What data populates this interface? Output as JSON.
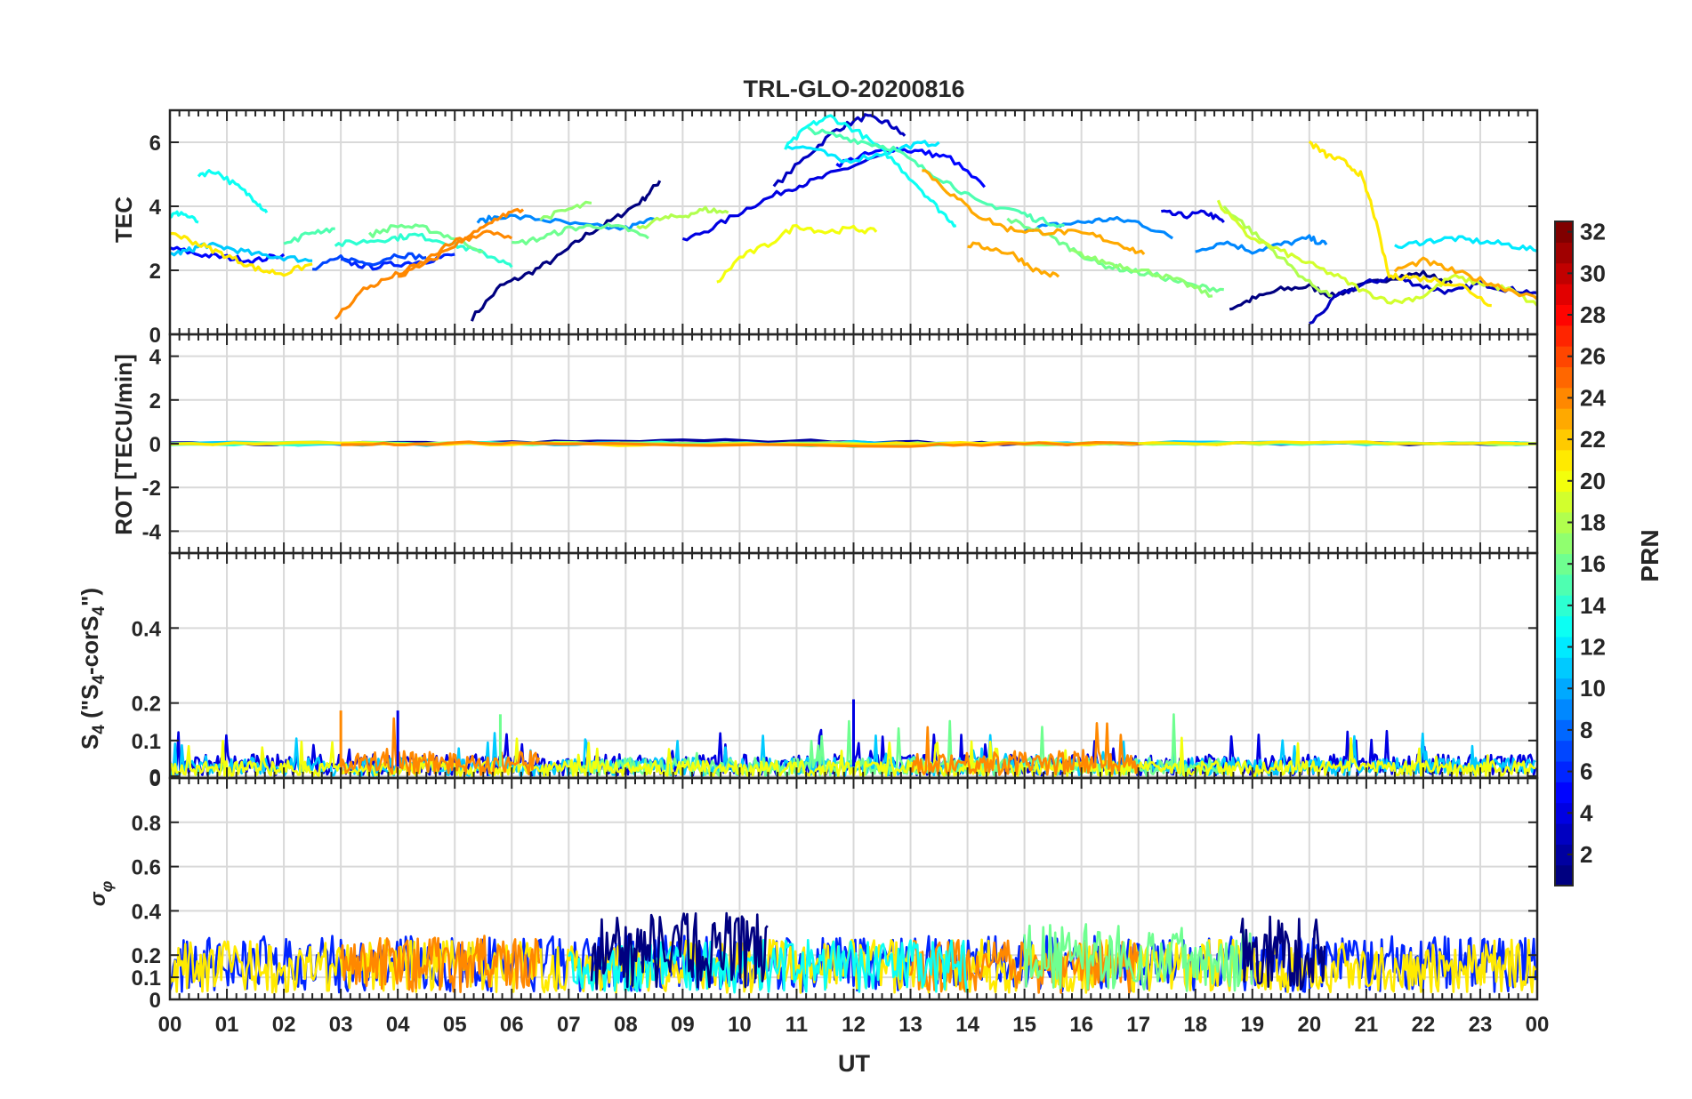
{
  "figure": {
    "title": "TRL-GLO-20200816",
    "xlabel": "UT",
    "x_ticks": [
      "00",
      "01",
      "02",
      "03",
      "04",
      "05",
      "06",
      "07",
      "08",
      "09",
      "10",
      "11",
      "12",
      "13",
      "14",
      "15",
      "16",
      "17",
      "18",
      "19",
      "20",
      "21",
      "22",
      "23",
      "00"
    ],
    "colorbar": {
      "label": "PRN",
      "range": [
        1,
        32
      ],
      "ticks": [
        "2",
        "4",
        "6",
        "8",
        "10",
        "12",
        "14",
        "16",
        "18",
        "20",
        "22",
        "24",
        "26",
        "28",
        "30",
        "32"
      ],
      "colormap": "jet"
    }
  },
  "chart_data": [
    {
      "type": "line",
      "panel": "TEC",
      "ylabel": "TEC",
      "xlim": [
        0,
        24
      ],
      "ylim": [
        0,
        7
      ],
      "yticks": [
        "0",
        "2",
        "4",
        "6"
      ],
      "series": [
        {
          "prn": 1,
          "x": [
            5.3,
            5.8,
            6.3,
            6.8,
            7.3,
            7.8,
            8.3,
            8.6
          ],
          "y": [
            0.5,
            1.5,
            1.9,
            2.4,
            3.1,
            3.6,
            4.2,
            4.8
          ]
        },
        {
          "prn": 1,
          "x": [
            18.6,
            19.0,
            19.5,
            20.0,
            20.4,
            20.9,
            21.5,
            22.0,
            22.5
          ],
          "y": [
            0.8,
            1.1,
            1.4,
            1.5,
            1.2,
            1.5,
            1.8,
            1.9,
            1.6
          ]
        },
        {
          "prn": 3,
          "x": [
            10.6,
            11.2,
            11.7,
            12.2,
            12.6,
            12.9
          ],
          "y": [
            4.6,
            5.6,
            6.4,
            6.8,
            6.6,
            6.2
          ]
        },
        {
          "prn": 3,
          "x": [
            20.0,
            20.5,
            21.0,
            21.5,
            22.0,
            22.5,
            23.0,
            23.5,
            24.0
          ],
          "y": [
            0.3,
            1.2,
            1.6,
            1.8,
            1.5,
            1.3,
            1.6,
            1.4,
            1.3
          ]
        },
        {
          "prn": 4,
          "x": [
            9.0,
            9.6,
            10.2,
            10.8,
            11.3,
            11.9,
            12.5
          ],
          "y": [
            2.9,
            3.4,
            4.0,
            4.5,
            4.8,
            5.2,
            5.6
          ]
        },
        {
          "prn": 4,
          "x": [
            17.4,
            17.8,
            18.2,
            18.5
          ],
          "y": [
            3.8,
            3.7,
            3.8,
            3.5
          ]
        },
        {
          "prn": 5,
          "x": [
            0.0,
            0.5,
            1.0,
            1.5,
            2.0
          ],
          "y": [
            2.7,
            2.5,
            2.4,
            2.3,
            2.5
          ]
        },
        {
          "prn": 5,
          "x": [
            11.7,
            12.2,
            12.7,
            13.2,
            13.7,
            14.3
          ],
          "y": [
            5.3,
            5.6,
            5.8,
            5.7,
            5.5,
            4.6
          ]
        },
        {
          "prn": 6,
          "x": [
            3.0,
            3.5,
            4.0,
            4.5,
            5.0
          ],
          "y": [
            2.3,
            2.1,
            2.2,
            2.3,
            2.5
          ]
        },
        {
          "prn": 7,
          "x": [
            2.5,
            3.0,
            3.5,
            4.0,
            4.5
          ],
          "y": [
            2.0,
            2.4,
            2.2,
            2.5,
            2.4
          ]
        },
        {
          "prn": 9,
          "x": [
            5.4,
            5.8,
            6.5,
            7.2,
            8.0,
            8.5
          ],
          "y": [
            3.5,
            3.7,
            3.6,
            3.4,
            3.3,
            3.6
          ]
        },
        {
          "prn": 9,
          "x": [
            15.0,
            15.5,
            16.0,
            16.5,
            17.0,
            17.6
          ],
          "y": [
            3.3,
            3.4,
            3.5,
            3.6,
            3.5,
            3.0
          ]
        },
        {
          "prn": 9,
          "x": [
            18.0,
            18.5,
            19.0,
            19.5,
            20.0,
            20.3
          ],
          "y": [
            2.6,
            2.9,
            2.6,
            2.8,
            3.0,
            2.8
          ]
        },
        {
          "prn": 11,
          "x": [
            0.0,
            0.3,
            0.6,
            1.0,
            1.5,
            2.0,
            2.5
          ],
          "y": [
            2.5,
            2.6,
            2.8,
            2.7,
            2.5,
            2.4,
            2.3
          ]
        },
        {
          "prn": 12,
          "x": [
            10.8,
            11.3,
            11.8,
            12.4,
            13.0,
            13.5
          ],
          "y": [
            5.9,
            5.8,
            5.4,
            5.6,
            5.9,
            6.0
          ]
        },
        {
          "prn": 12,
          "x": [
            21.5,
            22.0,
            22.5,
            23.0,
            23.5,
            24.0
          ],
          "y": [
            2.7,
            2.9,
            3.0,
            2.9,
            2.8,
            2.6
          ]
        },
        {
          "prn": 13,
          "x": [
            0.5,
            0.8,
            1.2,
            1.5,
            1.7
          ],
          "y": [
            5.0,
            5.1,
            4.6,
            4.2,
            3.8
          ]
        },
        {
          "prn": 13,
          "x": [
            0.0,
            0.2,
            0.5
          ],
          "y": [
            3.7,
            3.8,
            3.5
          ]
        },
        {
          "prn": 13,
          "x": [
            10.8,
            11.2,
            11.6,
            12.1,
            12.6,
            13.1,
            13.5,
            13.8
          ],
          "y": [
            5.8,
            6.5,
            6.8,
            6.3,
            5.6,
            4.7,
            3.9,
            3.4
          ]
        },
        {
          "prn": 14,
          "x": [
            2.9,
            3.4,
            3.9,
            4.3,
            4.8,
            5.2,
            5.7,
            6.0
          ],
          "y": [
            2.8,
            2.9,
            3.0,
            3.1,
            2.9,
            2.7,
            2.4,
            2.1
          ]
        },
        {
          "prn": 15,
          "x": [
            11.2,
            11.7,
            12.2,
            12.7,
            13.2,
            13.7,
            14.2,
            14.8,
            15.2,
            15.7
          ],
          "y": [
            6.4,
            6.2,
            6.0,
            5.8,
            5.2,
            4.7,
            4.1,
            3.9,
            3.6,
            3.4
          ]
        },
        {
          "prn": 15,
          "x": [
            2.0,
            2.5,
            2.9
          ],
          "y": [
            2.8,
            3.2,
            3.3
          ]
        },
        {
          "prn": 16,
          "x": [
            3.5,
            4.0,
            4.5,
            5.0,
            5.5
          ],
          "y": [
            3.1,
            3.4,
            3.3,
            3.0,
            2.6
          ]
        },
        {
          "prn": 16,
          "x": [
            6.0,
            6.5,
            7.0,
            7.5,
            8.0,
            8.4
          ],
          "y": [
            2.8,
            3.0,
            3.3,
            3.4,
            3.3,
            3.0
          ]
        },
        {
          "prn": 16,
          "x": [
            14.7,
            15.3,
            15.8,
            16.3,
            16.8,
            17.4,
            18.0,
            18.5
          ],
          "y": [
            3.6,
            3.2,
            2.7,
            2.2,
            2.0,
            1.8,
            1.5,
            1.4
          ]
        },
        {
          "prn": 17,
          "x": [
            6.5,
            7.0,
            7.4
          ],
          "y": [
            3.6,
            3.9,
            4.1
          ]
        },
        {
          "prn": 17,
          "x": [
            15.8,
            16.3,
            16.8,
            17.3,
            17.8,
            18.3
          ],
          "y": [
            2.6,
            2.3,
            2.1,
            1.9,
            1.6,
            1.2
          ]
        },
        {
          "prn": 18,
          "x": [
            8.2,
            8.6,
            9.0,
            9.4,
            9.8
          ],
          "y": [
            3.3,
            3.6,
            3.7,
            3.9,
            3.8
          ]
        },
        {
          "prn": 18,
          "x": [
            18.5,
            19.0,
            19.5,
            20.0,
            20.4
          ],
          "y": [
            4.0,
            3.2,
            2.4,
            1.6,
            1.2
          ]
        },
        {
          "prn": 19,
          "x": [
            18.4,
            18.9,
            19.5,
            20.0,
            20.5,
            21.0,
            21.5,
            22.0,
            22.5,
            23.0,
            23.5,
            24.0
          ],
          "y": [
            4.1,
            3.1,
            2.6,
            2.2,
            1.8,
            1.3,
            1.0,
            1.2,
            1.8,
            1.6,
            1.4,
            0.9
          ]
        },
        {
          "prn": 20,
          "x": [
            9.6,
            10.0,
            10.5,
            11.0,
            11.5,
            12.0,
            12.4
          ],
          "y": [
            1.6,
            2.4,
            2.8,
            3.4,
            3.2,
            3.3,
            3.2
          ]
        },
        {
          "prn": 21,
          "x": [
            0.0,
            0.4,
            0.8,
            1.2,
            1.6,
            2.0,
            2.5
          ],
          "y": [
            3.2,
            2.9,
            2.6,
            2.3,
            2.0,
            1.9,
            2.2
          ]
        },
        {
          "prn": 21,
          "x": [
            20.0,
            20.3,
            20.6,
            20.9,
            21.1,
            21.4,
            21.7,
            22.2,
            22.7,
            23.2
          ],
          "y": [
            6.0,
            5.6,
            5.4,
            5.0,
            4.0,
            1.8,
            1.8,
            1.7,
            1.5,
            0.9
          ]
        },
        {
          "prn": 23,
          "x": [
            13.2,
            13.7,
            14.2,
            14.7,
            15.2,
            15.7,
            16.2,
            16.7,
            17.1
          ],
          "y": [
            5.2,
            4.4,
            3.7,
            3.3,
            3.2,
            3.2,
            3.1,
            2.8,
            2.5
          ]
        },
        {
          "prn": 23,
          "x": [
            14.0,
            14.4,
            14.8,
            15.2,
            15.6
          ],
          "y": [
            2.8,
            2.7,
            2.5,
            2.0,
            1.8
          ]
        },
        {
          "prn": 23,
          "x": [
            21.5,
            22.0,
            22.5,
            23.0,
            23.5,
            24.0
          ],
          "y": [
            2.0,
            2.3,
            2.0,
            1.7,
            1.4,
            1.1
          ]
        },
        {
          "prn": 24,
          "x": [
            2.9,
            3.4,
            3.9,
            4.4,
            4.9,
            5.4,
            5.8,
            6.2
          ],
          "y": [
            0.5,
            1.4,
            1.8,
            2.2,
            2.8,
            3.2,
            3.7,
            3.9
          ]
        },
        {
          "prn": 24,
          "x": [
            4.0,
            4.5,
            5.0,
            5.5,
            6.0
          ],
          "y": [
            1.8,
            2.2,
            2.8,
            3.2,
            3.0
          ]
        }
      ]
    },
    {
      "type": "line",
      "panel": "ROT",
      "ylabel": "ROT [TECU/min]",
      "xlim": [
        0,
        24
      ],
      "ylim": [
        -5,
        5
      ],
      "yticks": [
        "-4",
        "-2",
        "0",
        "2",
        "4"
      ],
      "series": [
        {
          "prn": 2,
          "x": [
            0,
            3,
            6,
            9,
            12,
            15,
            18,
            21,
            24
          ],
          "y": [
            0,
            0,
            0.05,
            0.15,
            0.1,
            0,
            0,
            0,
            0
          ]
        },
        {
          "prn": 11,
          "x": [
            0,
            3,
            6,
            9,
            12,
            15,
            18,
            21,
            24
          ],
          "y": [
            0.05,
            -0.05,
            0,
            0,
            0.05,
            0,
            0.05,
            0,
            0
          ]
        },
        {
          "prn": 14,
          "x": [
            0,
            3,
            6,
            9,
            12,
            15,
            18,
            21,
            24
          ],
          "y": [
            0,
            0,
            0,
            0.05,
            -0.1,
            0,
            0,
            0,
            0
          ]
        },
        {
          "prn": 17,
          "x": [
            0,
            3,
            6,
            9,
            12,
            15,
            18,
            21,
            24
          ],
          "y": [
            0,
            0.05,
            0,
            0,
            0,
            0,
            0,
            0.05,
            0
          ]
        },
        {
          "prn": 21,
          "x": [
            0,
            3,
            6,
            9,
            12,
            15,
            18,
            21,
            24
          ],
          "y": [
            0,
            0,
            0,
            -0.05,
            0,
            0,
            0,
            0.05,
            0
          ]
        },
        {
          "prn": 24,
          "x": [
            3,
            4.5,
            6,
            13,
            15,
            17
          ],
          "y": [
            0,
            0,
            0.05,
            -0.1,
            0,
            0
          ]
        }
      ]
    },
    {
      "type": "line",
      "panel": "S4",
      "ylabel": "S4 (\"S4-corS4\")",
      "xlim": [
        0,
        24
      ],
      "ylim": [
        0,
        0.6
      ],
      "yticks": [
        "0",
        "0",
        "0.1",
        "0.2",
        "0.4"
      ],
      "noise_bands": [
        {
          "prn": 4,
          "x_range": [
            0,
            24
          ],
          "mean": 0.035,
          "peak": 0.13
        },
        {
          "prn": 11,
          "x_range": [
            0,
            24
          ],
          "mean": 0.03,
          "peak": 0.12
        },
        {
          "prn": 16,
          "x_range": [
            7,
            18.5
          ],
          "mean": 0.03,
          "peak": 0.17
        },
        {
          "prn": 20,
          "x_range": [
            0,
            24
          ],
          "mean": 0.025,
          "peak": 0.11
        },
        {
          "prn": 24,
          "x_range": [
            3,
            6.5
          ],
          "mean": 0.04,
          "peak": 0.17
        },
        {
          "prn": 24,
          "x_range": [
            13,
            17
          ],
          "mean": 0.04,
          "peak": 0.15
        }
      ],
      "peaks": [
        {
          "prn": 4,
          "x": 12.0,
          "y": 0.21
        },
        {
          "prn": 24,
          "x": 3.0,
          "y": 0.18
        },
        {
          "prn": 4,
          "x": 4.0,
          "y": 0.18
        },
        {
          "prn": 16,
          "x": 5.8,
          "y": 0.17
        }
      ]
    },
    {
      "type": "line",
      "panel": "sigma_phi",
      "ylabel": "σφ",
      "xlim": [
        0,
        24
      ],
      "ylim": [
        0,
        1
      ],
      "yticks": [
        "0",
        "0.1",
        "0.2",
        "0.4",
        "0.6",
        "0.8"
      ],
      "noise_bands": [
        {
          "prn": 6,
          "x_range": [
            0,
            24
          ],
          "mean": 0.16,
          "peak": 0.22
        },
        {
          "prn": 21,
          "x_range": [
            0,
            24
          ],
          "mean": 0.15,
          "peak": 0.19
        },
        {
          "prn": 24,
          "x_range": [
            3,
            6.5
          ],
          "mean": 0.16,
          "peak": 0.22
        },
        {
          "prn": 24,
          "x_range": [
            13,
            17
          ],
          "mean": 0.15,
          "peak": 0.21
        },
        {
          "prn": 16,
          "x_range": [
            15,
            19
          ],
          "mean": 0.19,
          "peak": 0.26
        },
        {
          "prn": 13,
          "x_range": [
            7,
            14
          ],
          "mean": 0.15,
          "peak": 0.2
        }
      ],
      "elevated_segments": [
        {
          "prn": 1,
          "x_range": [
            7.4,
            10.5
          ],
          "mean": 0.22,
          "peak": 0.35
        },
        {
          "prn": 1,
          "x_range": [
            18.8,
            20.3
          ],
          "mean": 0.21,
          "peak": 0.31
        }
      ]
    }
  ]
}
